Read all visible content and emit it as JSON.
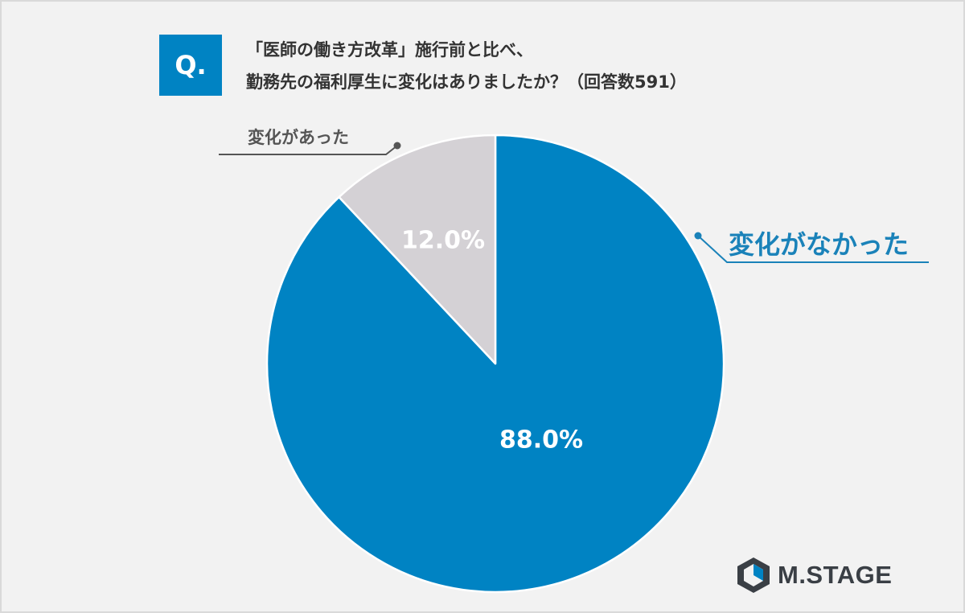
{
  "question": {
    "badge": "Q.",
    "line1": "「医師の働き方改革」施行前と比べ、",
    "line2": "勤務先の福利厚生に変化はありましたか？（回答数591）"
  },
  "chart_data": {
    "type": "pie",
    "start_angle_deg": 0,
    "direction": "clockwise",
    "slices": [
      {
        "label": "変化がなかった",
        "value": 88.0,
        "value_label": "88.0%",
        "color": "#0083c3",
        "callout_color": "#1a82b9"
      },
      {
        "label": "変化があった",
        "value": 12.0,
        "value_label": "12.0%",
        "color": "#d4d1d5",
        "callout_color": "#555555"
      }
    ]
  },
  "logo": {
    "text": "M.STAGE",
    "colors": {
      "dark": "#3a3f45",
      "accent": "#0083c3"
    }
  }
}
